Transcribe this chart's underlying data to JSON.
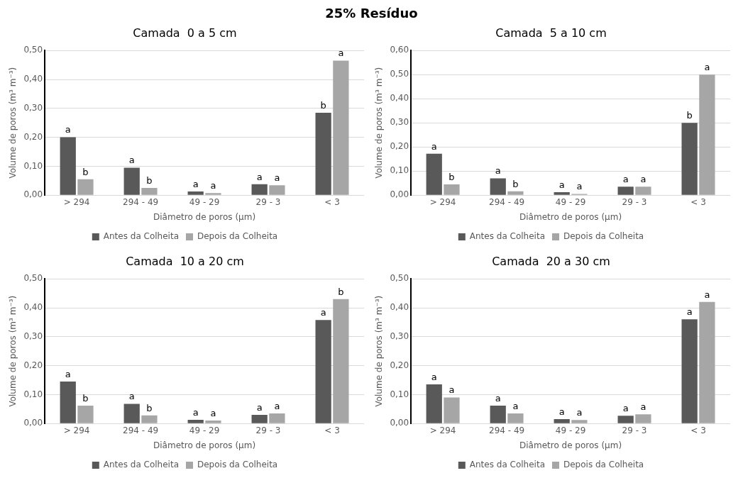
{
  "chart_data": [
    {
      "type": "bar",
      "title": "25% Resíduo",
      "subtitle": "Camada  0 a 5 cm",
      "xlabel": "Diâmetro de poros (µm)",
      "ylabel": "Volume de poros (m³ m⁻³)",
      "categories": [
        "> 294",
        "294 - 49",
        "49 - 29",
        "29 - 3",
        "< 3"
      ],
      "ylim": [
        0,
        0.5
      ],
      "yticks": [
        {
          "value": 0,
          "label": "0,00"
        },
        {
          "value": 0.1,
          "label": "0,10"
        },
        {
          "value": 0.2,
          "label": "0,20"
        },
        {
          "value": 0.3,
          "label": "0,30"
        },
        {
          "value": 0.4,
          "label": "0,40"
        },
        {
          "value": 0.5,
          "label": "0,50"
        }
      ],
      "grid": "y",
      "legend": "bottom",
      "series": [
        {
          "name": "Antes da Colheita",
          "color": "#595959",
          "values": [
            0.2,
            0.095,
            0.013,
            0.038,
            0.285
          ],
          "value_labels": [
            "a",
            "a",
            "a",
            "a",
            "b"
          ]
        },
        {
          "name": "Depois da Colheita",
          "color": "#a6a6a6",
          "values": [
            0.055,
            0.025,
            0.007,
            0.034,
            0.465
          ],
          "value_labels": [
            "b",
            "b",
            "a",
            "a",
            "a"
          ]
        }
      ]
    },
    {
      "type": "bar",
      "subtitle": "Camada  5 a 10 cm",
      "xlabel": "Diâmetro de poros (µm)",
      "ylabel": "Volume de poros (m³ m⁻³)",
      "categories": [
        "> 294",
        "294 - 49",
        "49 - 29",
        "29 - 3",
        "< 3"
      ],
      "ylim": [
        0,
        0.6
      ],
      "yticks": [
        {
          "value": 0,
          "label": "0,00"
        },
        {
          "value": 0.1,
          "label": "0,10"
        },
        {
          "value": 0.2,
          "label": "0,20"
        },
        {
          "value": 0.3,
          "label": "0,30"
        },
        {
          "value": 0.4,
          "label": "0,40"
        },
        {
          "value": 0.5,
          "label": "0,50"
        },
        {
          "value": 0.6,
          "label": "0,60"
        }
      ],
      "grid": "y",
      "legend": "bottom",
      "series": [
        {
          "name": "Antes da Colheita",
          "color": "#595959",
          "values": [
            0.172,
            0.07,
            0.012,
            0.035,
            0.3
          ],
          "value_labels": [
            "a",
            "a",
            "a",
            "a",
            "b"
          ]
        },
        {
          "name": "Depois da Colheita",
          "color": "#a6a6a6",
          "values": [
            0.045,
            0.016,
            0.005,
            0.035,
            0.5
          ],
          "value_labels": [
            "b",
            "b",
            "a",
            "a",
            "a"
          ]
        }
      ]
    },
    {
      "type": "bar",
      "subtitle": "Camada  10 a 20 cm",
      "xlabel": "Diâmetro de poros (µm)",
      "ylabel": "Volume de poros (m³ m⁻³)",
      "categories": [
        "> 294",
        "294 - 49",
        "49 - 29",
        "29 - 3",
        "< 3"
      ],
      "ylim": [
        0,
        0.5
      ],
      "yticks": [
        {
          "value": 0,
          "label": "0,00"
        },
        {
          "value": 0.1,
          "label": "0,10"
        },
        {
          "value": 0.2,
          "label": "0,20"
        },
        {
          "value": 0.3,
          "label": "0,30"
        },
        {
          "value": 0.4,
          "label": "0,40"
        },
        {
          "value": 0.5,
          "label": "0,50"
        }
      ],
      "grid": "y",
      "legend": "bottom",
      "series": [
        {
          "name": "Antes da Colheita",
          "color": "#595959",
          "values": [
            0.145,
            0.068,
            0.013,
            0.03,
            0.358
          ],
          "value_labels": [
            "a",
            "a",
            "a",
            "a",
            "a"
          ]
        },
        {
          "name": "Depois da Colheita",
          "color": "#a6a6a6",
          "values": [
            0.062,
            0.028,
            0.01,
            0.035,
            0.43
          ],
          "value_labels": [
            "b",
            "b",
            "a",
            "a",
            "b"
          ]
        }
      ]
    },
    {
      "type": "bar",
      "subtitle": "Camada  20 a 30 cm",
      "xlabel": "Diâmetro de poros (µm)",
      "ylabel": "Volume de poros (m³ m⁻³)",
      "categories": [
        "> 294",
        "294 - 49",
        "49 - 29",
        "29 - 3",
        "< 3"
      ],
      "ylim": [
        0,
        0.5
      ],
      "yticks": [
        {
          "value": 0,
          "label": "0,00"
        },
        {
          "value": 0.1,
          "label": "0,10"
        },
        {
          "value": 0.2,
          "label": "0,20"
        },
        {
          "value": 0.3,
          "label": "0,30"
        },
        {
          "value": 0.4,
          "label": "0,40"
        },
        {
          "value": 0.5,
          "label": "0,50"
        }
      ],
      "grid": "y",
      "legend": "bottom",
      "series": [
        {
          "name": "Antes da Colheita",
          "color": "#595959",
          "values": [
            0.135,
            0.062,
            0.015,
            0.027,
            0.36
          ],
          "value_labels": [
            "a",
            "a",
            "a",
            "a",
            "a"
          ]
        },
        {
          "name": "Depois da Colheita",
          "color": "#a6a6a6",
          "values": [
            0.09,
            0.035,
            0.012,
            0.032,
            0.42
          ],
          "value_labels": [
            "a",
            "a",
            "a",
            "a",
            "a"
          ]
        }
      ]
    }
  ]
}
